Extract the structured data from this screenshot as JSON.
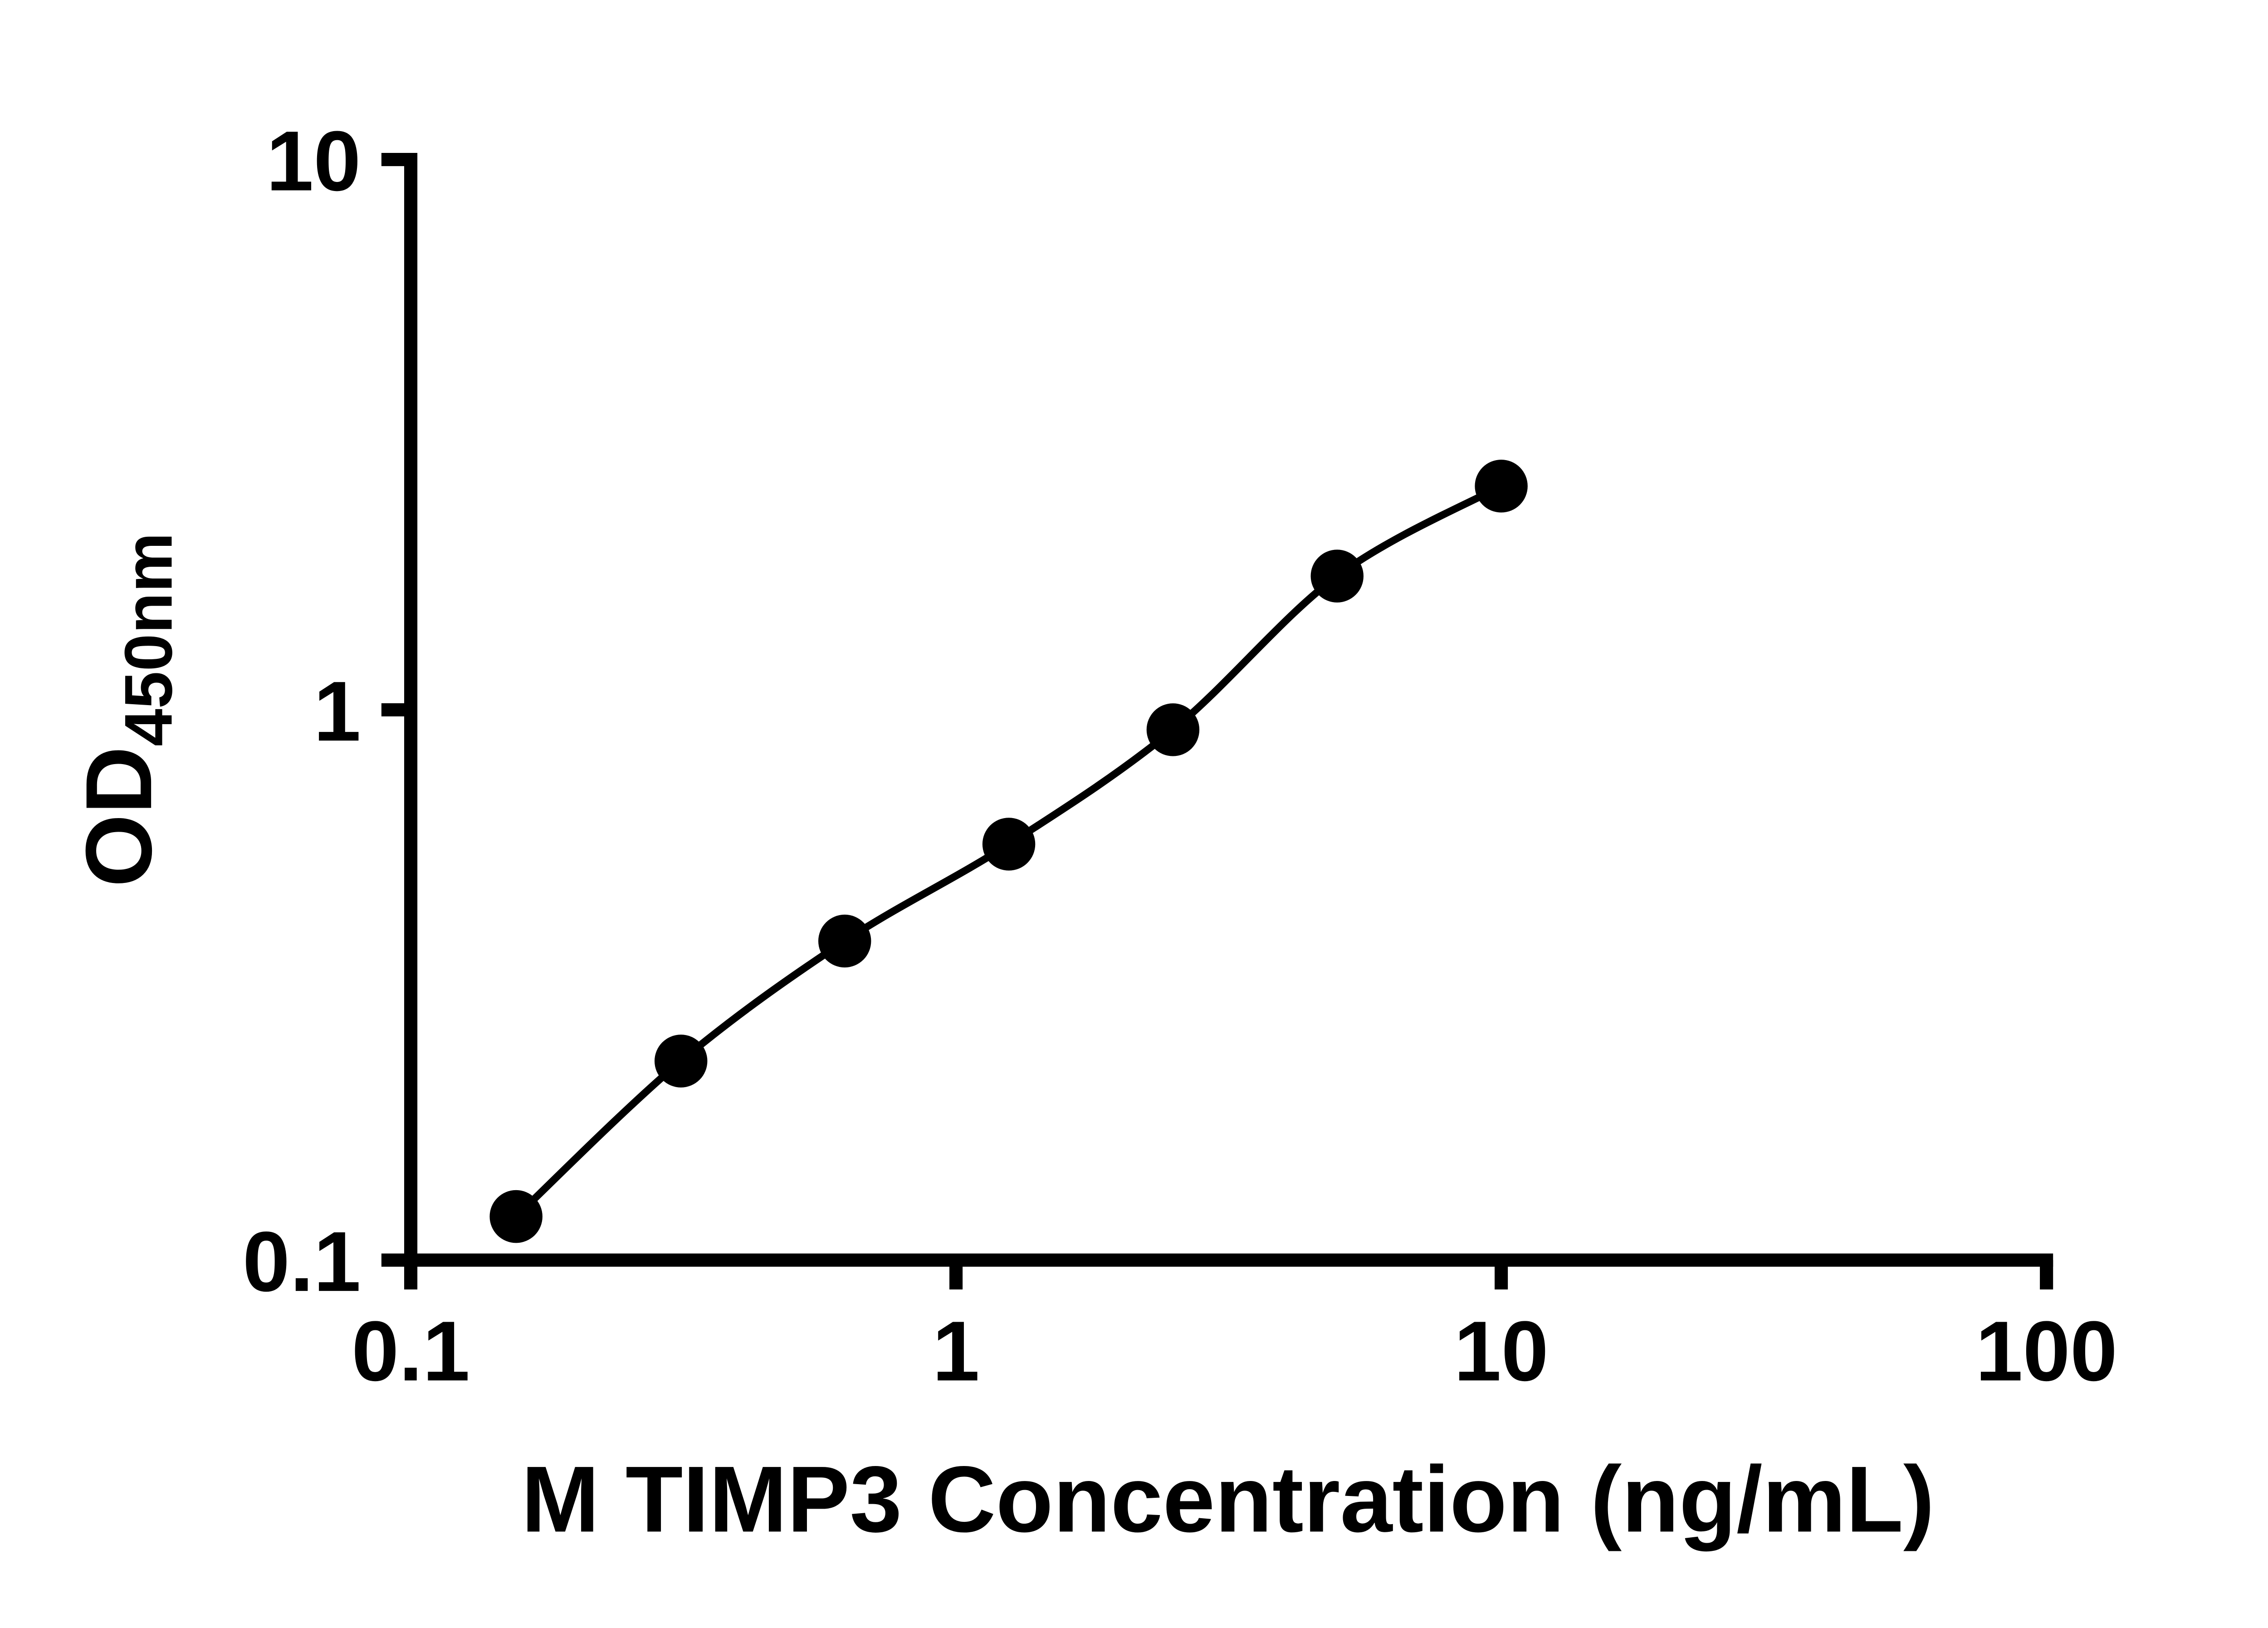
{
  "chart_data": {
    "type": "scatter",
    "title": "",
    "xlabel": "M TIMP3 Concentration (ng/mL)",
    "ylabel_main": "OD",
    "ylabel_sub": "450nm",
    "x_scale": "log",
    "y_scale": "log",
    "xlim": [
      0.1,
      100
    ],
    "ylim": [
      0.1,
      10
    ],
    "x_ticks": [
      0.1,
      1,
      10,
      100
    ],
    "x_tick_labels": [
      "0.1",
      "1",
      "10",
      "100"
    ],
    "y_ticks": [
      0.1,
      1,
      10
    ],
    "y_tick_labels": [
      "0.1",
      "1",
      "10"
    ],
    "grid": false,
    "legend": false,
    "fit_line": true,
    "series": [
      {
        "marker": "circle",
        "color": "#000000",
        "x": [
          0.156,
          0.313,
          0.625,
          1.25,
          2.5,
          5,
          10
        ],
        "y": [
          0.12,
          0.23,
          0.38,
          0.57,
          0.92,
          1.75,
          2.55
        ]
      }
    ]
  },
  "style": {
    "background": "#ffffff",
    "axis_color": "#000000",
    "line_color": "#000000",
    "point_color": "#000000",
    "axis_stroke_width": 9,
    "tick_length": 20,
    "line_stroke_width": 5,
    "point_radius": 18
  }
}
